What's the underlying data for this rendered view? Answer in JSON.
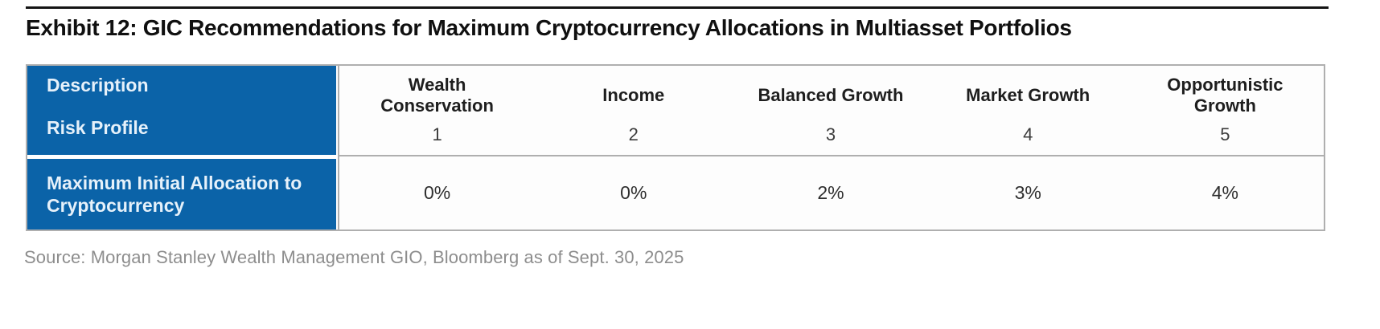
{
  "page": {
    "title": "Exhibit 12: GIC Recommendations for Maximum Cryptocurrency Allocations in Multiasset Portfolios",
    "source_note": "Source: Morgan Stanley Wealth Management GIO, Bloomberg as of Sept. 30, 2025"
  },
  "table": {
    "corner": {
      "description_label": "Description",
      "risk_profile_label": "Risk Profile"
    },
    "allocation_row_header": "Maximum Initial Allocation to Cryptocurrency",
    "columns": [
      {
        "name": "Wealth Conservation",
        "risk_profile": "1",
        "max_allocation": "0%"
      },
      {
        "name": "Income",
        "risk_profile": "2",
        "max_allocation": "0%"
      },
      {
        "name": "Balanced Growth",
        "risk_profile": "3",
        "max_allocation": "2%"
      },
      {
        "name": "Market Growth",
        "risk_profile": "4",
        "max_allocation": "3%"
      },
      {
        "name": "Opportunistic Growth",
        "risk_profile": "5",
        "max_allocation": "4%"
      }
    ],
    "colors": {
      "header_blue": "#0B63A8",
      "border_gray": "#AFAFAF"
    }
  }
}
